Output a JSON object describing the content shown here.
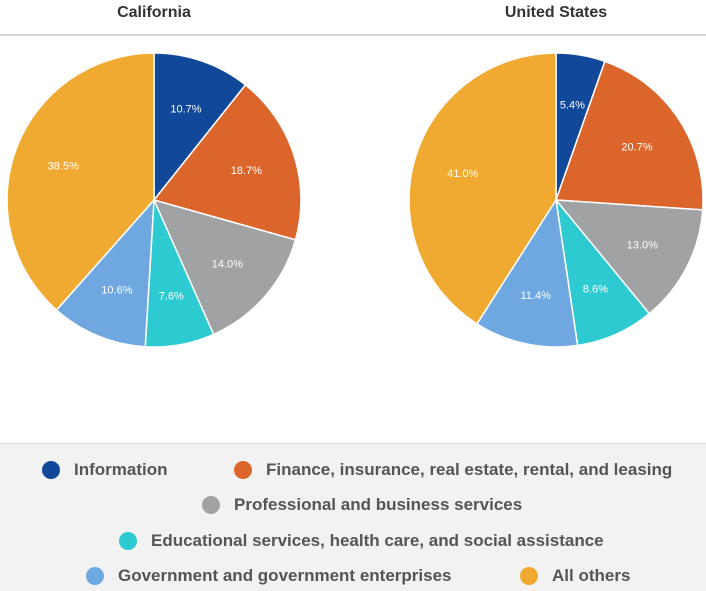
{
  "chart_data": [
    {
      "type": "pie",
      "title": "California",
      "slices": [
        {
          "label": "Information",
          "value": 10.7,
          "text": "10.7%"
        },
        {
          "label": "Finance, insurance, real estate, rental, and leasing",
          "value": 18.7,
          "text": "18.7%"
        },
        {
          "label": "Professional and business services",
          "value": 14.0,
          "text": "14.0%"
        },
        {
          "label": "Educational services, health care, and social assistance",
          "value": 7.6,
          "text": "7.6%"
        },
        {
          "label": "Government and government enterprises",
          "value": 10.6,
          "text": "10.6%"
        },
        {
          "label": "All others",
          "value": 38.5,
          "text": "38.5%"
        }
      ]
    },
    {
      "type": "pie",
      "title": "United States",
      "slices": [
        {
          "label": "Information",
          "value": 5.4,
          "text": "5.4%"
        },
        {
          "label": "Finance, insurance, real estate, rental, and leasing",
          "value": 20.7,
          "text": "20.7%"
        },
        {
          "label": "Professional and business services",
          "value": 13.0,
          "text": "13.0%"
        },
        {
          "label": "Educational services, health care, and social assistance",
          "value": 8.6,
          "text": "8.6%"
        },
        {
          "label": "Government and government enterprises",
          "value": 11.4,
          "text": "11.4%"
        },
        {
          "label": "All others",
          "value": 41.0,
          "text": "41.0%"
        }
      ]
    }
  ],
  "legend": [
    {
      "label": "Information",
      "color": "#11489a"
    },
    {
      "label": "Finance, insurance, real estate, rental, and leasing",
      "color": "#db652a"
    },
    {
      "label": "Professional and business services",
      "color": "#a0a2a3"
    },
    {
      "label": "Educational services, health care, and social assistance",
      "color": "#2ecad2"
    },
    {
      "label": "Government and government enterprises",
      "color": "#6fa8e0"
    },
    {
      "label": "All others",
      "color": "#f0aa31"
    }
  ]
}
